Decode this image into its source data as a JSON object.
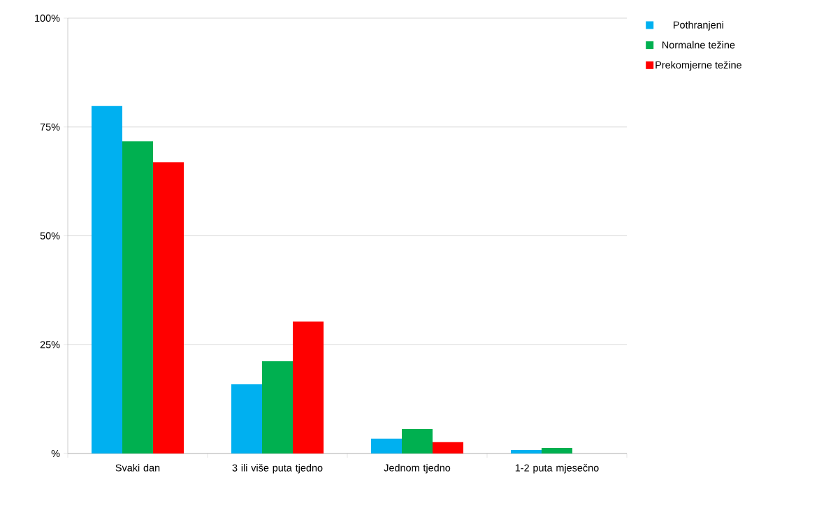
{
  "chart_data": {
    "type": "bar",
    "categories": [
      "Svaki dan",
      "3 ili više puta tjedno",
      "Jednom tjedno",
      "1-2 puta mjesečno"
    ],
    "series": [
      {
        "name": "Pothranjeni",
        "color": "#00b0f0",
        "values": [
          79.8,
          15.9,
          3.4,
          0.8
        ]
      },
      {
        "name": "Normalne težine",
        "color": "#00b050",
        "values": [
          71.7,
          21.2,
          5.6,
          1.3
        ]
      },
      {
        "name": "Prekomjerne težine",
        "color": "#ff0000",
        "values": [
          66.9,
          30.3,
          2.6,
          null
        ]
      }
    ],
    "ylim": [
      0,
      100
    ],
    "yticks": [
      {
        "value": 0,
        "label": "%"
      },
      {
        "value": 25,
        "label": "25%"
      },
      {
        "value": 50,
        "label": "50%"
      },
      {
        "value": 75,
        "label": "75%"
      },
      {
        "value": 100,
        "label": "100%"
      }
    ],
    "grid": "y",
    "legend": "top right"
  }
}
